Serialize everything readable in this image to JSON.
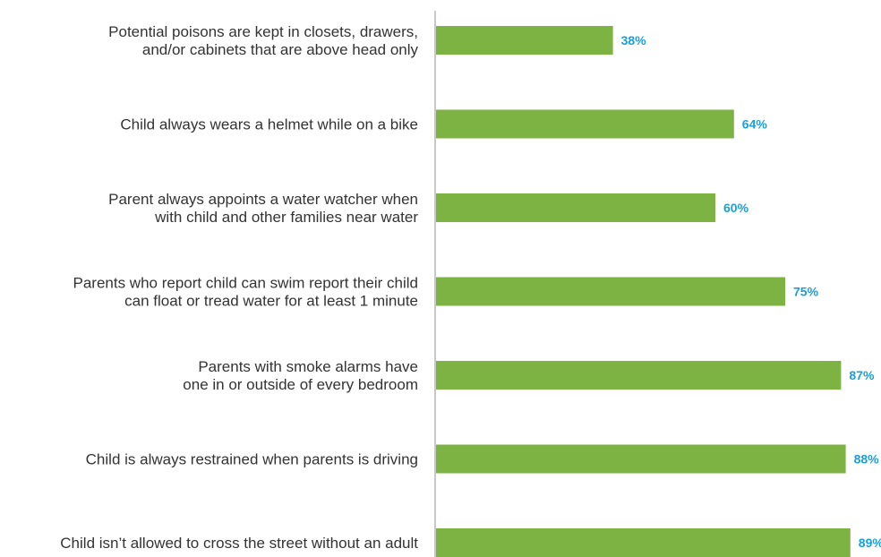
{
  "chart_data": {
    "type": "bar",
    "orientation": "horizontal",
    "title": "",
    "xlabel": "",
    "ylabel": "",
    "xlim": [
      0,
      100
    ],
    "grid": false,
    "legend": "none",
    "categories": [
      [
        "Potential poisons are kept in closets, drawers,",
        "and/or cabinets that are above head only"
      ],
      [
        "Child always wears a helmet while on a bike"
      ],
      [
        "Parent always appoints a water watcher when",
        "with child and other families near water"
      ],
      [
        "Parents who report child can swim report their child",
        "can float or tread water for at least 1 minute"
      ],
      [
        "Parents with smoke alarms have",
        "one in or outside of every bedroom"
      ],
      [
        "Child is always restrained when parents is driving"
      ],
      [
        "Child isn’t allowed to cross the street without an adult"
      ]
    ],
    "values": [
      38,
      64,
      60,
      75,
      87,
      88,
      89
    ],
    "value_labels": [
      "38%",
      "64%",
      "60%",
      "75%",
      "87%",
      "88%",
      "89%"
    ]
  },
  "colors": {
    "bar": "#7cb342",
    "value_label": "#1a9fd9",
    "axis": "#c8c8c8",
    "category_text": "#333333"
  }
}
